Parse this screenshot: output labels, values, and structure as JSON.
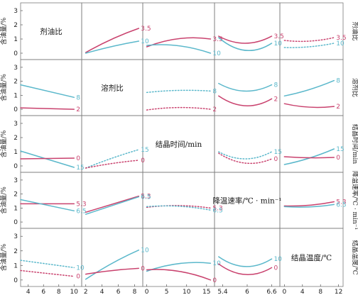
{
  "chart_data": {
    "type": "line",
    "title": "",
    "colors": {
      "high": "#5BB8CB",
      "low": "#C9426E"
    },
    "variables": [
      {
        "key": "ratio",
        "label": "剂油比",
        "ticks": [
          "4",
          "6",
          "8",
          "10"
        ],
        "range": [
          3,
          11
        ],
        "levels": [
          "3.5",
          "10"
        ]
      },
      {
        "key": "solvent",
        "label": "溶剂比",
        "ticks": [
          "2",
          "4",
          "6",
          "8"
        ],
        "range": [
          1.5,
          9
        ],
        "levels": [
          "8",
          "2"
        ]
      },
      {
        "key": "time",
        "label": "结晶时间/min",
        "ticks": [
          "0",
          "5",
          "10",
          "15"
        ],
        "range": [
          -1,
          17
        ],
        "levels": [
          "15",
          "0"
        ]
      },
      {
        "key": "rate",
        "label": "降温速率/℃ · min⁻¹",
        "ticks": [
          "5.4",
          "6",
          "6.6"
        ],
        "range": [
          5.2,
          6.8
        ],
        "levels": [
          "5.3",
          "6.5"
        ]
      },
      {
        "key": "temp",
        "label": "结晶温度/℃",
        "ticks": [
          "0",
          "4",
          "8",
          "12"
        ],
        "range": [
          -1,
          13
        ],
        "levels": [
          "10",
          "0"
        ]
      }
    ],
    "ylabel": "含油量/%",
    "yticks": [
      "0",
      "1",
      "2",
      "3"
    ],
    "ylim": [
      -0.3,
      3.4
    ],
    "panels": [
      {
        "row": 0,
        "col": 1,
        "series": [
          {
            "name": "3.5",
            "color": "low",
            "dashed": false,
            "x": [
              2,
              8.5
            ],
            "y": [
              0.05,
              1.75
            ],
            "curv": 0.1
          },
          {
            "name": "10",
            "color": "high",
            "dashed": false,
            "x": [
              2,
              8.5
            ],
            "y": [
              0.0,
              0.85
            ],
            "curv": 0.05
          }
        ]
      },
      {
        "row": 0,
        "col": 2,
        "series": [
          {
            "name": "3.5",
            "color": "low",
            "dashed": false,
            "x": [
              0,
              16
            ],
            "y": [
              0.45,
              1.0
            ],
            "curv": 0.3
          },
          {
            "name": "10",
            "color": "high",
            "dashed": false,
            "x": [
              0,
              16
            ],
            "y": [
              0.55,
              0.0
            ],
            "curv": 0.25
          }
        ]
      },
      {
        "row": 0,
        "col": 3,
        "series": [
          {
            "name": "3.5",
            "color": "low",
            "dashed": false,
            "x": [
              5.3,
              6.6
            ],
            "y": [
              1.2,
              1.2
            ],
            "curv": -0.5
          },
          {
            "name": "10",
            "color": "high",
            "dashed": false,
            "x": [
              5.3,
              6.6
            ],
            "y": [
              1.1,
              0.7
            ],
            "curv": -0.7
          }
        ]
      },
      {
        "row": 0,
        "col": 4,
        "series": [
          {
            "name": "3.5",
            "color": "low",
            "dashed": true,
            "x": [
              0,
              11
            ],
            "y": [
              0.9,
              1.1
            ],
            "curv": -0.15
          },
          {
            "name": "10",
            "color": "high",
            "dashed": true,
            "x": [
              0,
              11
            ],
            "y": [
              0.4,
              0.7
            ],
            "curv": -0.1
          }
        ]
      },
      {
        "row": 1,
        "col": 0,
        "series": [
          {
            "name": "8",
            "color": "high",
            "dashed": false,
            "x": [
              3,
              10
            ],
            "y": [
              1.75,
              0.85
            ],
            "curv": 0
          },
          {
            "name": "2",
            "color": "low",
            "dashed": false,
            "x": [
              3,
              10
            ],
            "y": [
              0.1,
              0.0
            ],
            "curv": 0
          }
        ]
      },
      {
        "row": 1,
        "col": 2,
        "series": [
          {
            "name": "8",
            "color": "high",
            "dashed": true,
            "x": [
              0,
              16
            ],
            "y": [
              1.2,
              1.3
            ],
            "curv": 0.1
          },
          {
            "name": "2",
            "color": "low",
            "dashed": true,
            "x": [
              0,
              16
            ],
            "y": [
              -0.05,
              0.0
            ],
            "curv": 0.15
          }
        ]
      },
      {
        "row": 1,
        "col": 3,
        "series": [
          {
            "name": "8",
            "color": "high",
            "dashed": false,
            "x": [
              5.3,
              6.6
            ],
            "y": [
              1.85,
              1.75
            ],
            "curv": -0.5
          },
          {
            "name": "2",
            "color": "low",
            "dashed": false,
            "x": [
              5.3,
              6.6
            ],
            "y": [
              0.95,
              0.75
            ],
            "curv": -0.6
          }
        ]
      },
      {
        "row": 1,
        "col": 4,
        "series": [
          {
            "name": "8",
            "color": "high",
            "dashed": false,
            "x": [
              0,
              11
            ],
            "y": [
              0.95,
              2.05
            ],
            "curv": -0.1
          },
          {
            "name": "2",
            "color": "low",
            "dashed": false,
            "x": [
              0,
              11
            ],
            "y": [
              0.4,
              0.2
            ],
            "curv": -0.15
          }
        ]
      },
      {
        "row": 2,
        "col": 0,
        "series": [
          {
            "name": "15",
            "color": "high",
            "dashed": false,
            "x": [
              3,
              10
            ],
            "y": [
              1.05,
              -0.1
            ],
            "curv": 0
          },
          {
            "name": "0",
            "color": "low",
            "dashed": false,
            "x": [
              3,
              10
            ],
            "y": [
              0.5,
              0.55
            ],
            "curv": 0
          }
        ]
      },
      {
        "row": 2,
        "col": 1,
        "series": [
          {
            "name": "15",
            "color": "high",
            "dashed": true,
            "x": [
              2,
              8.5
            ],
            "y": [
              -0.15,
              1.15
            ],
            "curv": 0.05
          },
          {
            "name": "0",
            "color": "low",
            "dashed": true,
            "x": [
              2,
              8.5
            ],
            "y": [
              -0.15,
              0.4
            ],
            "curv": 0.05
          }
        ]
      },
      {
        "row": 2,
        "col": 3,
        "series": [
          {
            "name": "15",
            "color": "high",
            "dashed": true,
            "x": [
              5.3,
              6.6
            ],
            "y": [
              1.0,
              1.0
            ],
            "curv": -0.5
          },
          {
            "name": "0",
            "color": "low",
            "dashed": true,
            "x": [
              5.3,
              6.6
            ],
            "y": [
              0.9,
              0.5
            ],
            "curv": -0.5
          }
        ]
      },
      {
        "row": 2,
        "col": 4,
        "series": [
          {
            "name": "15",
            "color": "high",
            "dashed": false,
            "x": [
              0,
              11
            ],
            "y": [
              0.1,
              1.2
            ],
            "curv": -0.1
          },
          {
            "name": "0",
            "color": "low",
            "dashed": false,
            "x": [
              0,
              11
            ],
            "y": [
              0.65,
              0.6
            ],
            "curv": -0.05
          }
        ]
      },
      {
        "row": 3,
        "col": 0,
        "series": [
          {
            "name": "5.3",
            "color": "low",
            "dashed": false,
            "x": [
              3,
              10
            ],
            "y": [
              1.3,
              1.3
            ],
            "curv": 0
          },
          {
            "name": "6.5",
            "color": "high",
            "dashed": false,
            "x": [
              3,
              10
            ],
            "y": [
              1.6,
              0.8
            ],
            "curv": 0
          }
        ]
      },
      {
        "row": 3,
        "col": 1,
        "series": [
          {
            "name": "5.3",
            "color": "low",
            "dashed": false,
            "x": [
              2,
              8.5
            ],
            "y": [
              0.7,
              1.85
            ],
            "curv": 0
          },
          {
            "name": "6.5",
            "color": "high",
            "dashed": false,
            "x": [
              2,
              8.5
            ],
            "y": [
              0.55,
              1.8
            ],
            "curv": 0
          }
        ]
      },
      {
        "row": 3,
        "col": 2,
        "series": [
          {
            "name": "5.3",
            "color": "low",
            "dashed": true,
            "x": [
              0,
              16
            ],
            "y": [
              1.05,
              1.0
            ],
            "curv": 0.15
          },
          {
            "name": "6.5",
            "color": "high",
            "dashed": true,
            "x": [
              0,
              16
            ],
            "y": [
              1.1,
              0.85
            ],
            "curv": 0.15
          }
        ]
      },
      {
        "row": 3,
        "col": 4,
        "series": [
          {
            "name": "5.3",
            "color": "low",
            "dashed": false,
            "x": [
              0,
              11
            ],
            "y": [
              1.15,
              1.45
            ],
            "curv": -0.1
          },
          {
            "name": "6.5",
            "color": "high",
            "dashed": false,
            "x": [
              0,
              11
            ],
            "y": [
              1.1,
              1.25
            ],
            "curv": -0.1
          }
        ]
      },
      {
        "row": 4,
        "col": 0,
        "series": [
          {
            "name": "10",
            "color": "high",
            "dashed": true,
            "x": [
              3,
              10
            ],
            "y": [
              1.35,
              0.85
            ],
            "curv": 0
          },
          {
            "name": "0",
            "color": "low",
            "dashed": true,
            "x": [
              3,
              10
            ],
            "y": [
              0.65,
              0.25
            ],
            "curv": 0
          }
        ]
      },
      {
        "row": 4,
        "col": 1,
        "series": [
          {
            "name": "10",
            "color": "high",
            "dashed": false,
            "x": [
              2,
              8.5
            ],
            "y": [
              0.05,
              2.05
            ],
            "curv": 0.1
          },
          {
            "name": "0",
            "color": "low",
            "dashed": false,
            "x": [
              2,
              8.5
            ],
            "y": [
              0.4,
              0.8
            ],
            "curv": 0.05
          }
        ]
      },
      {
        "row": 4,
        "col": 2,
        "series": [
          {
            "name": "10",
            "color": "high",
            "dashed": false,
            "x": [
              0,
              16
            ],
            "y": [
              0.6,
              1.15
            ],
            "curv": 0.25
          },
          {
            "name": "0",
            "color": "low",
            "dashed": false,
            "x": [
              0,
              16
            ],
            "y": [
              0.7,
              0.0
            ],
            "curv": 0.25
          }
        ]
      },
      {
        "row": 4,
        "col": 3,
        "series": [
          {
            "name": "10",
            "color": "high",
            "dashed": false,
            "x": [
              5.3,
              6.6
            ],
            "y": [
              1.6,
              1.45
            ],
            "curv": -0.6
          },
          {
            "name": "0",
            "color": "low",
            "dashed": false,
            "x": [
              5.3,
              6.6
            ],
            "y": [
              1.1,
              0.85
            ],
            "curv": -0.6
          }
        ]
      }
    ]
  }
}
